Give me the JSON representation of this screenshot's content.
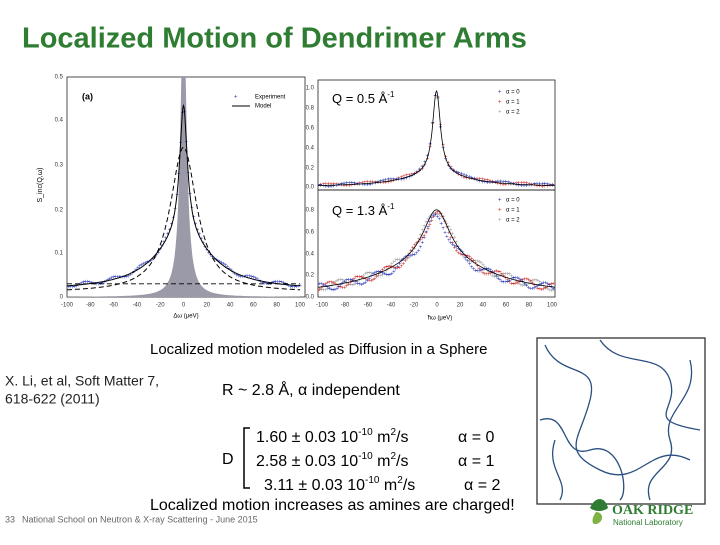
{
  "header": {
    "title": "Localized Motion of Dendrimer Arms"
  },
  "figure": {
    "left": {
      "panel": "(a)",
      "legend": [
        "Experiment",
        "Model"
      ],
      "y_label": "S_inc(Q,ω)",
      "x_label": "Δω (μeV)",
      "yticks": [
        "0.5",
        "0.4",
        "0.3",
        "0.2",
        "0.1",
        "0"
      ],
      "xticks": [
        "-100",
        "-80",
        "-60",
        "-40",
        "-20",
        "0",
        "20",
        "40",
        "60",
        "80",
        "100"
      ]
    },
    "right": {
      "x_label": "ħω (μeV)",
      "xticks": [
        "-100",
        "-80",
        "-60",
        "-40",
        "-20",
        "0",
        "20",
        "40",
        "60",
        "80",
        "100"
      ],
      "panels": [
        {
          "q": "Q = 0.5 Å",
          "q_exp": "-1",
          "yticks": [
            "1.0",
            "0.8",
            "0.6",
            "0.4",
            "0.2",
            "0.0"
          ],
          "legend": [
            "α = 0",
            "α = 1",
            "α = 2"
          ]
        },
        {
          "q": "Q = 1.3 Å",
          "q_exp": "-1",
          "yticks": [
            "0.8",
            "0.6",
            "0.4",
            "0.2",
            "0.0"
          ],
          "legend": [
            "α = 0",
            "α = 1",
            "α = 2"
          ]
        }
      ]
    }
  },
  "caption": "Localized motion modeled as Diffusion in a Sphere",
  "reference": {
    "line1": "X. Li, et al, Soft Matter 7,",
    "line2": "618-622 (2011)"
  },
  "radius": "R ~ 2.8 Å, α independent",
  "diffusion": {
    "symbol": "D",
    "rows": [
      {
        "text": "1.60 ± 0.03 10",
        "exp": "-10",
        "unit": " m",
        "unit_exp": "2",
        "unit_rest": "/s",
        "alpha": "α = 0"
      },
      {
        "text": "2.58 ± 0.03 10",
        "exp": "-10",
        "unit": " m",
        "unit_exp": "2",
        "unit_rest": "/s",
        "alpha": "α = 1"
      },
      {
        "text": "3.11 ± 0.03 10",
        "exp": "-10",
        "unit": " m",
        "unit_exp": "2",
        "unit_rest": "/s",
        "alpha": "α = 2"
      }
    ]
  },
  "conclusion": "Localized motion increases as amines are charged!",
  "footer": {
    "page": "33",
    "text": "National School on Neutron & X-ray Scattering -  June 2015",
    "logo_top": "OAK RIDGE",
    "logo_bottom": "National Laboratory"
  }
}
